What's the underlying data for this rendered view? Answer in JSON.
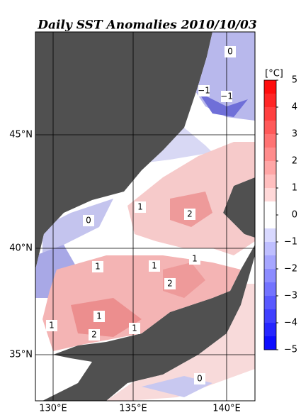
{
  "title": "Daily SST Anomalies 2010/10/03",
  "longitude_labels": [
    "130°E",
    "135°E",
    "140°E"
  ],
  "latitude_labels": [
    "45°N",
    "40°N",
    "35°N"
  ],
  "colorbar": {
    "unit": "[°C]",
    "ticks": [
      "5",
      "4",
      "3",
      "2",
      "1",
      "0",
      "−1",
      "−2",
      "−3",
      "−4",
      "−5"
    ]
  },
  "contour_labels": [
    "0",
    "−1",
    "−1",
    "1",
    "2",
    "0",
    "1",
    "1",
    "1",
    "2",
    "1",
    "1",
    "2",
    "1",
    "0"
  ]
}
